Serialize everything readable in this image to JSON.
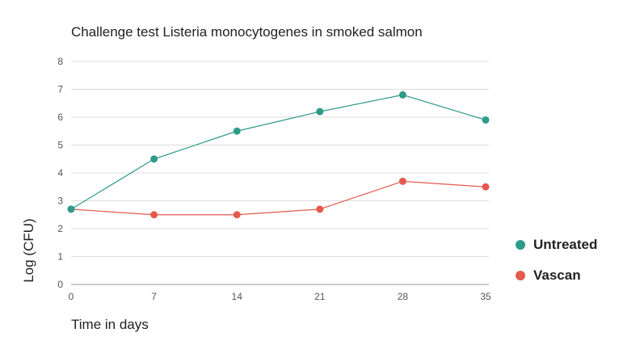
{
  "chart_data": {
    "type": "line",
    "title": "Challenge test Listeria monocytogenes in smoked salmon",
    "xlabel": "Time in days",
    "ylabel": "Log (CFU)",
    "x": [
      0,
      7,
      14,
      21,
      28,
      35
    ],
    "xticks": [
      "0",
      "7",
      "14",
      "21",
      "28",
      "35"
    ],
    "yticks": [
      "0",
      "1",
      "2",
      "3",
      "4",
      "5",
      "6",
      "7",
      "8"
    ],
    "ylim": [
      0,
      8
    ],
    "xlim": [
      0,
      35
    ],
    "grid": true,
    "legend_position": "right",
    "series": [
      {
        "name": "Untreated",
        "color": "#2e9a8a",
        "values": [
          2.7,
          4.5,
          5.5,
          6.2,
          6.8,
          5.9
        ]
      },
      {
        "name": "Vascan",
        "color": "#e45a4c",
        "values": [
          2.7,
          2.5,
          2.5,
          2.7,
          3.7,
          3.5
        ]
      }
    ]
  }
}
